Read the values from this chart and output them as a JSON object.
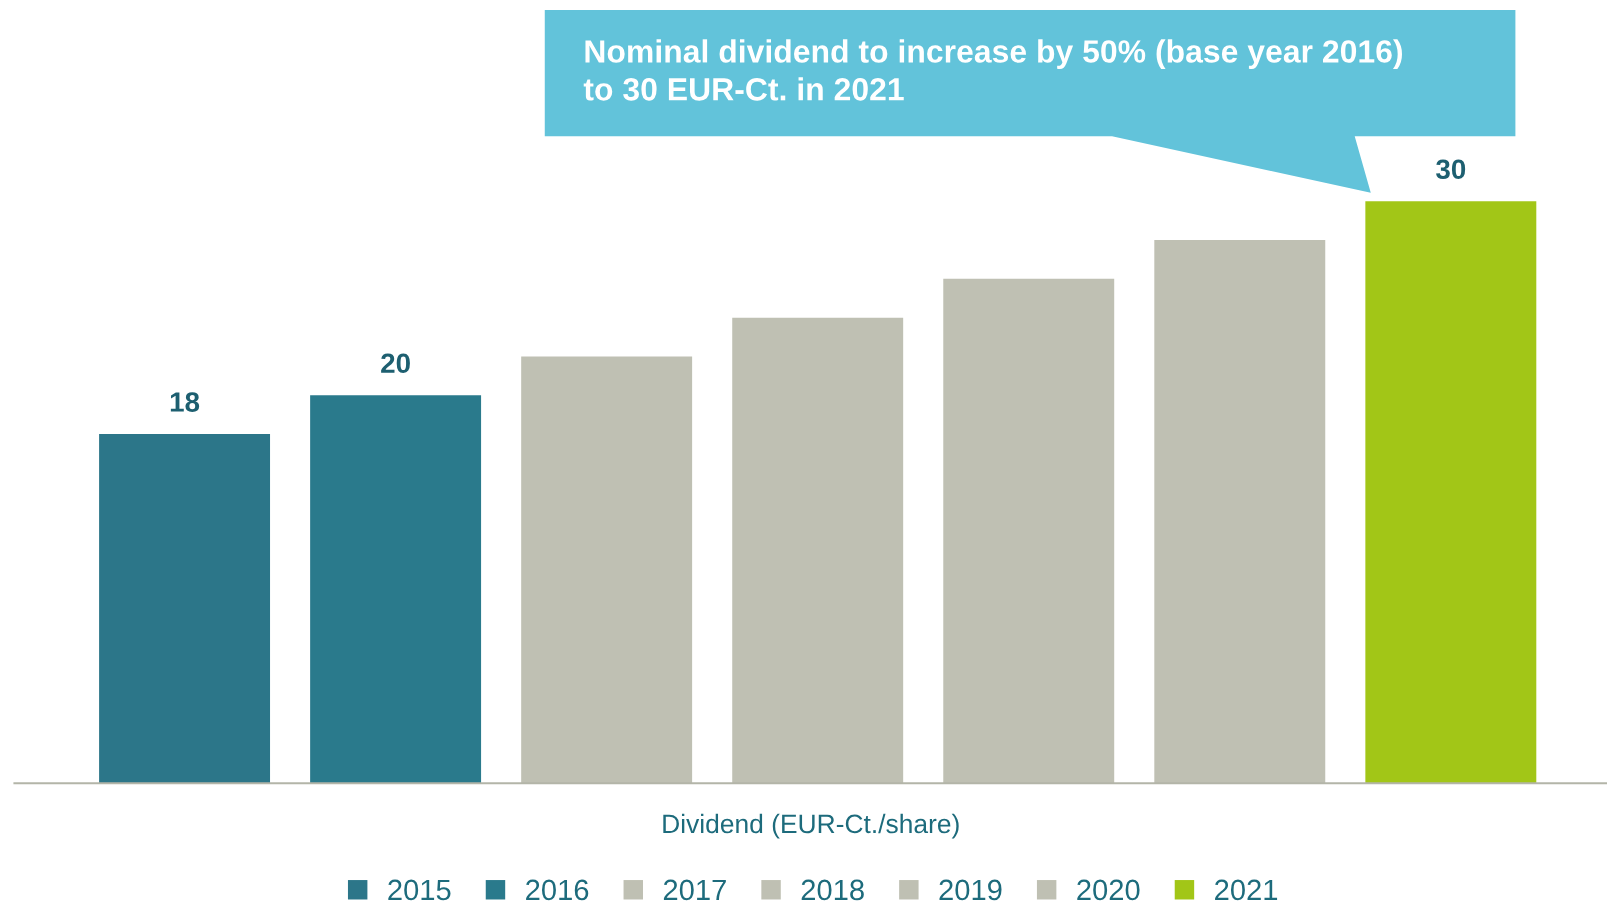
{
  "chart_data": {
    "type": "bar",
    "xlabel": "Dividend (EUR-Ct./share)",
    "annotations": [
      "Nominal dividend to increase by 50% (base year 2016)\nto 30 EUR-Ct. in 2021"
    ],
    "categories": [
      null,
      null,
      null,
      null,
      null,
      null,
      null
    ],
    "series": [
      {
        "name": "2015",
        "color": "#2c7689",
        "values": [
          18,
          null,
          null,
          null,
          null,
          null,
          null
        ],
        "value_labels": [
          "18",
          null,
          null,
          null,
          null,
          null,
          null
        ]
      },
      {
        "name": "2016",
        "color": "#2a7a8c",
        "values": [
          null,
          20,
          null,
          null,
          null,
          null,
          null
        ],
        "value_labels": [
          null,
          "20",
          null,
          null,
          null,
          null,
          null
        ]
      },
      {
        "name": "2017",
        "color": "#bfc0b3",
        "values": [
          null,
          null,
          22,
          null,
          null,
          null,
          null
        ],
        "value_labels": [
          null,
          null,
          null,
          null,
          null,
          null,
          null
        ]
      },
      {
        "name": "2018",
        "color": "#bfc0b3",
        "values": [
          null,
          null,
          null,
          24,
          null,
          null,
          null
        ],
        "value_labels": [
          null,
          null,
          null,
          null,
          null,
          null,
          null
        ]
      },
      {
        "name": "2019",
        "color": "#bfc0b3",
        "values": [
          null,
          null,
          null,
          null,
          26,
          null,
          null
        ],
        "value_labels": [
          null,
          null,
          null,
          null,
          null,
          null,
          null
        ]
      },
      {
        "name": "2020",
        "color": "#bfc0b3",
        "values": [
          null,
          null,
          null,
          null,
          null,
          28,
          null
        ],
        "value_labels": [
          null,
          null,
          null,
          null,
          null,
          null,
          null
        ]
      },
      {
        "name": "2021",
        "color": "#a2c617",
        "values": [
          null,
          null,
          null,
          null,
          null,
          null,
          30
        ],
        "value_labels": [
          null,
          null,
          null,
          null,
          null,
          null,
          "30"
        ]
      }
    ],
    "stacked": true,
    "grid": false,
    "legend": "bottom",
    "tick_labels": false
  }
}
